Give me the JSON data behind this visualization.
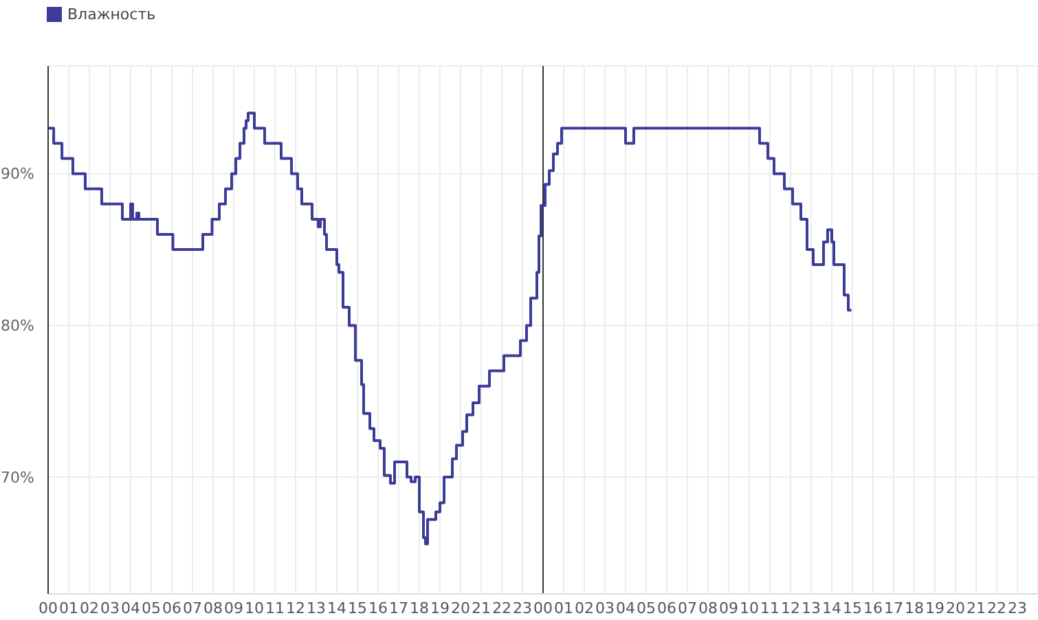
{
  "chart_data": {
    "type": "step",
    "legend": "top left",
    "grid": true,
    "marker": "none",
    "line_style": "solid",
    "x": [
      0,
      0.27,
      0.67,
      1.2,
      1.8,
      2.6,
      3.6,
      4.0,
      4.1,
      4.3,
      4.4,
      5.3,
      6.05,
      7.5,
      7.95,
      8.3,
      8.6,
      8.9,
      9.1,
      9.3,
      9.5,
      9.6,
      9.7,
      10.0,
      10.5,
      11.3,
      11.8,
      12.1,
      12.3,
      12.8,
      13.1,
      13.2,
      13.4,
      13.5,
      14.0,
      14.1,
      14.3,
      14.6,
      14.9,
      15.2,
      15.3,
      15.6,
      15.8,
      16.1,
      16.3,
      16.6,
      16.8,
      17.4,
      17.6,
      17.8,
      18.0,
      18.2,
      18.3,
      18.4,
      18.8,
      19.0,
      19.2,
      19.6,
      19.8,
      20.1,
      20.3,
      20.6,
      20.9,
      21.4,
      22.1,
      22.9,
      23.2,
      23.4,
      23.7,
      23.8,
      23.9,
      24.1,
      24.3,
      24.5,
      24.7,
      24.9,
      28.0,
      28.4,
      34.5,
      34.9,
      35.2,
      35.7,
      36.1,
      36.5,
      36.8,
      37.1,
      37.6,
      37.8,
      38.0,
      38.1,
      38.6,
      38.8,
      38.95
    ],
    "xlim": [
      0,
      48
    ],
    "xticks": [
      {
        "value": 0,
        "label": "00"
      },
      {
        "value": 1,
        "label": "01"
      },
      {
        "value": 2,
        "label": "02"
      },
      {
        "value": 3,
        "label": "03"
      },
      {
        "value": 4,
        "label": "04"
      },
      {
        "value": 5,
        "label": "05"
      },
      {
        "value": 6,
        "label": "06"
      },
      {
        "value": 7,
        "label": "07"
      },
      {
        "value": 8,
        "label": "08"
      },
      {
        "value": 9,
        "label": "09"
      },
      {
        "value": 10,
        "label": "10"
      },
      {
        "value": 11,
        "label": "11"
      },
      {
        "value": 12,
        "label": "12"
      },
      {
        "value": 13,
        "label": "13"
      },
      {
        "value": 14,
        "label": "14"
      },
      {
        "value": 15,
        "label": "15"
      },
      {
        "value": 16,
        "label": "16"
      },
      {
        "value": 17,
        "label": "17"
      },
      {
        "value": 18,
        "label": "18"
      },
      {
        "value": 19,
        "label": "19"
      },
      {
        "value": 20,
        "label": "20"
      },
      {
        "value": 21,
        "label": "21"
      },
      {
        "value": 22,
        "label": "22"
      },
      {
        "value": 23,
        "label": "23"
      },
      {
        "value": 24,
        "label": "00"
      },
      {
        "value": 25,
        "label": "01"
      },
      {
        "value": 26,
        "label": "02"
      },
      {
        "value": 27,
        "label": "03"
      },
      {
        "value": 28,
        "label": "04"
      },
      {
        "value": 29,
        "label": "05"
      },
      {
        "value": 30,
        "label": "06"
      },
      {
        "value": 31,
        "label": "07"
      },
      {
        "value": 32,
        "label": "08"
      },
      {
        "value": 33,
        "label": "09"
      },
      {
        "value": 34,
        "label": "10"
      },
      {
        "value": 35,
        "label": "11"
      },
      {
        "value": 36,
        "label": "12"
      },
      {
        "value": 37,
        "label": "13"
      },
      {
        "value": 38,
        "label": "14"
      },
      {
        "value": 39,
        "label": "15"
      },
      {
        "value": 40,
        "label": "16"
      },
      {
        "value": 41,
        "label": "17"
      },
      {
        "value": 42,
        "label": "18"
      },
      {
        "value": 43,
        "label": "19"
      },
      {
        "value": 44,
        "label": "20"
      },
      {
        "value": 45,
        "label": "21"
      },
      {
        "value": 46,
        "label": "22"
      },
      {
        "value": 47,
        "label": "23"
      }
    ],
    "ylim": [
      62.3,
      97.1
    ],
    "yticks": [
      {
        "value": 70,
        "label": "70%"
      },
      {
        "value": 80,
        "label": "80%"
      },
      {
        "value": 90,
        "label": "90%"
      }
    ],
    "ref_lines": [
      {
        "axis": "x",
        "value": 24,
        "color": "#333333"
      }
    ],
    "series": [
      {
        "name": "Влажность",
        "color": "#3b3b9a",
        "values": [
          93,
          92,
          91,
          90,
          89,
          88,
          87,
          88,
          87,
          87.4,
          87,
          86,
          85,
          86,
          87,
          88,
          89,
          90,
          91,
          92,
          93,
          93.5,
          94,
          93,
          92,
          91,
          90,
          89,
          88,
          87,
          86.5,
          87,
          86,
          85,
          84,
          83.5,
          81.2,
          80,
          77.7,
          76.1,
          74.2,
          73.2,
          72.4,
          71.9,
          70.1,
          69.6,
          71,
          70,
          69.7,
          70,
          67.7,
          66,
          65.6,
          67.2,
          67.7,
          68.3,
          70,
          71.2,
          72.1,
          73,
          74.1,
          74.9,
          76,
          77,
          78,
          79,
          80,
          81.8,
          83.5,
          85.9,
          87.9,
          89.3,
          90.2,
          91.3,
          92,
          93,
          92,
          93,
          92,
          91,
          90,
          89,
          88,
          87,
          85,
          84,
          85.5,
          86.3,
          85.5,
          84,
          82,
          81,
          81
        ]
      }
    ]
  }
}
